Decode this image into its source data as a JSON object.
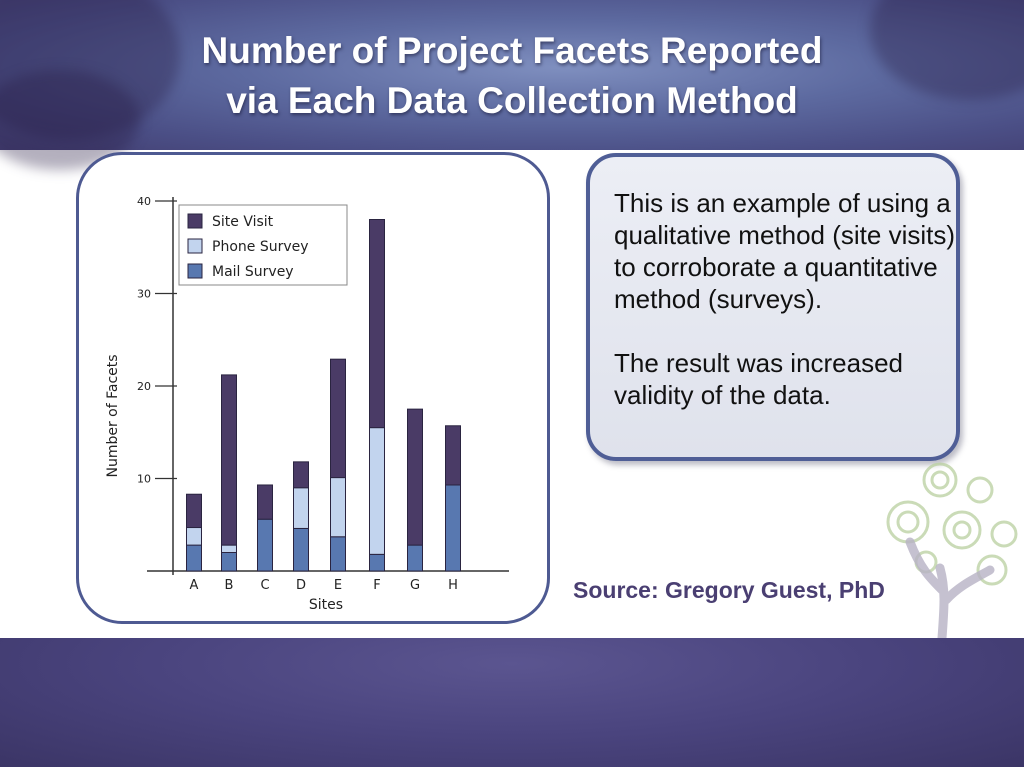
{
  "slide": {
    "title_line1": "Number of Project Facets Reported",
    "title_line2": "via Each Data Collection Method",
    "callout_paragraph1": "This is an example of using a qualitative method (site visits) to corroborate a quantitative method (surveys).",
    "callout_paragraph2": "The result was increased validity of the data.",
    "source": "Source: Gregory Guest, PhD",
    "colors": {
      "site_visit": "#4a3b66",
      "phone_survey": "#c2d4ee",
      "mail_survey": "#5878b0",
      "frame_border": "#4e5a92",
      "source_text": "#4a3f72"
    },
    "decoration_icon": "tree-logo-icon"
  },
  "chart_data": {
    "type": "bar",
    "stacked": true,
    "title": "",
    "xlabel": "Sites",
    "ylabel": "Number of Facets",
    "ylim": [
      0,
      40
    ],
    "yticks": [
      10,
      20,
      30,
      40
    ],
    "categories": [
      "A",
      "B",
      "C",
      "D",
      "E",
      "F",
      "G",
      "H"
    ],
    "series": [
      {
        "name": "Mail Survey",
        "color": "#5878b0",
        "values": [
          2.8,
          2.0,
          5.6,
          4.6,
          3.7,
          1.8,
          2.8,
          9.3
        ]
      },
      {
        "name": "Phone Survey",
        "color": "#c2d4ee",
        "values": [
          1.9,
          0.8,
          0,
          4.4,
          6.4,
          13.7,
          0,
          0
        ]
      },
      {
        "name": "Site Visit",
        "color": "#4a3b66",
        "values": [
          3.6,
          18.4,
          3.7,
          2.8,
          12.8,
          22.5,
          14.7,
          6.4
        ]
      }
    ],
    "legend": {
      "position": "top-left",
      "entries": [
        "Site Visit",
        "Phone Survey",
        "Mail Survey"
      ]
    }
  }
}
